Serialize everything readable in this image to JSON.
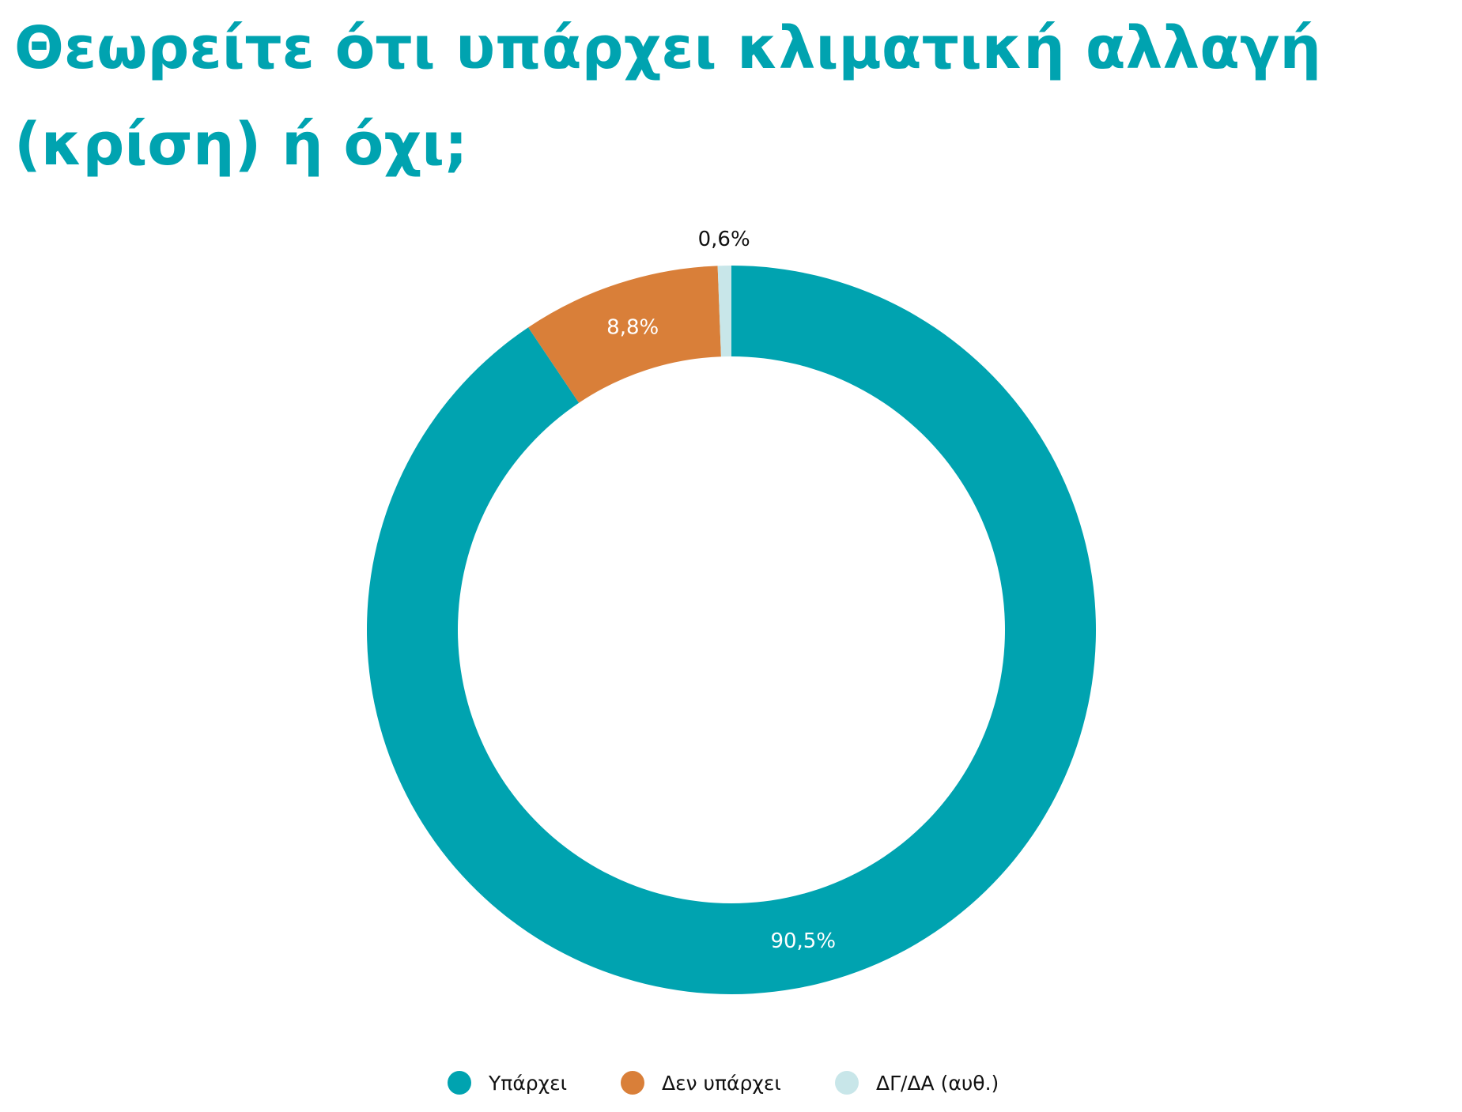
{
  "title": "Θεωρείτε ότι υπάρχει κλιματική αλλαγή (κρίση) ή όχι;",
  "chart_data": {
    "type": "pie",
    "variant": "donut",
    "title": "Θεωρείτε ότι υπάρχει κλιματική αλλαγή (κρίση) ή όχι;",
    "categories": [
      "Υπάρχει",
      "Δεν υπάρχει",
      "ΔΓ/ΔΑ (αυθ.)"
    ],
    "values": [
      90.5,
      8.8,
      0.6
    ],
    "data_labels": [
      "90,5%",
      "8,8%",
      "0,6%"
    ],
    "colors": [
      "#00a3b0",
      "#d97f39",
      "#c8e6e9"
    ],
    "start": "12 o'clock",
    "direction": "clockwise",
    "legend_position": "bottom"
  }
}
